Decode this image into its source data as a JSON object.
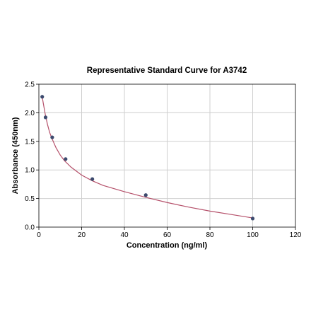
{
  "chart_data": {
    "type": "scatter",
    "title": "Representative Standard Curve for A3742",
    "xlabel": "Concentration (ng/ml)",
    "ylabel": "Absorbance (450nm)",
    "xlim": [
      0,
      120
    ],
    "ylim": [
      0,
      2.5
    ],
    "xticks": [
      0,
      20,
      40,
      60,
      80,
      100,
      120
    ],
    "yticks": [
      0.0,
      0.5,
      1.0,
      1.5,
      2.0,
      2.5
    ],
    "xtick_labels": [
      "0",
      "20",
      "40",
      "60",
      "80",
      "100",
      "120"
    ],
    "ytick_labels": [
      "0.0",
      "0.5",
      "1.0",
      "1.5",
      "2.0",
      "2.5"
    ],
    "grid": true,
    "series": [
      {
        "x": [
          1.56,
          3.13,
          6.25,
          12.5,
          25,
          50,
          100
        ],
        "y": [
          2.28,
          1.92,
          1.57,
          1.19,
          0.84,
          0.56,
          0.15
        ]
      }
    ],
    "fit_curve": {
      "x": [
        1.56,
        2,
        3,
        4,
        5,
        6,
        8,
        10,
        12,
        15,
        20,
        25,
        30,
        40,
        50,
        60,
        70,
        80,
        90,
        100
      ],
      "y": [
        2.28,
        2.18,
        1.97,
        1.8,
        1.66,
        1.56,
        1.39,
        1.26,
        1.16,
        1.05,
        0.91,
        0.81,
        0.73,
        0.62,
        0.52,
        0.43,
        0.35,
        0.28,
        0.22,
        0.16
      ]
    },
    "colors": {
      "marker": "#3c4a6e",
      "curve": "#b5506a",
      "grid": "#cfcfcf"
    }
  }
}
